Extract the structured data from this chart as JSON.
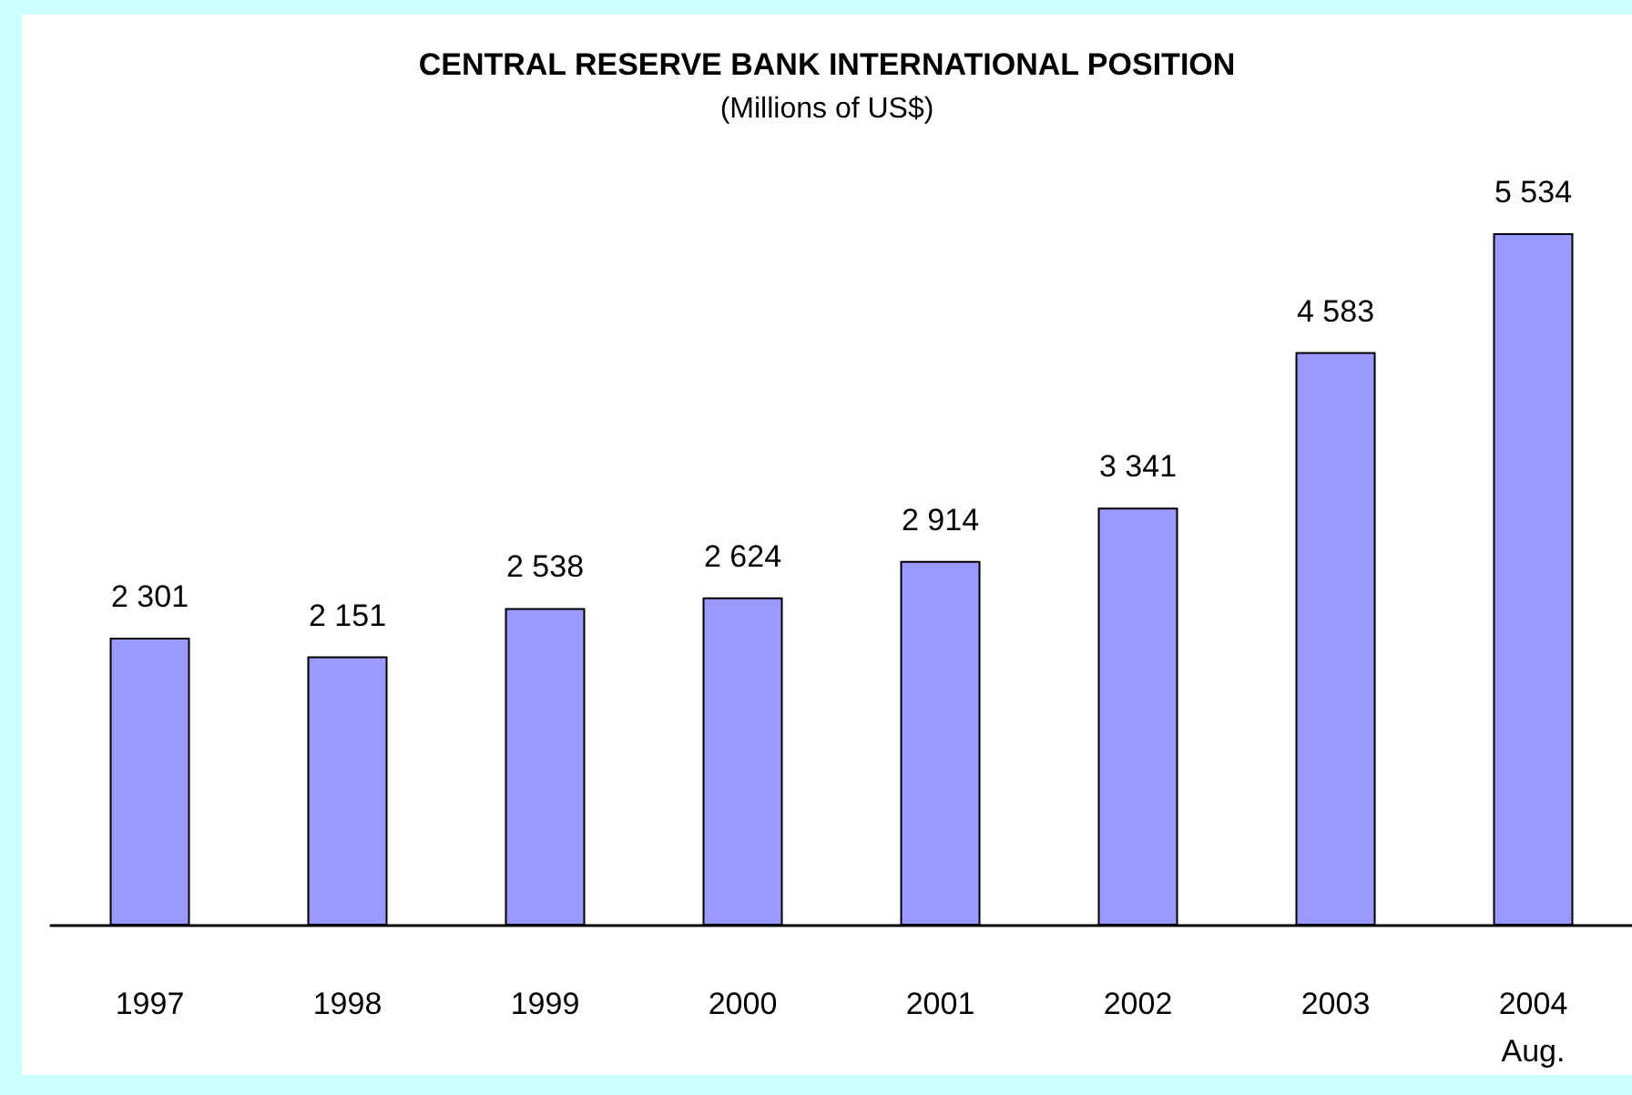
{
  "chart_data": {
    "type": "bar",
    "title": "CENTRAL RESERVE BANK INTERNATIONAL POSITION",
    "subtitle": "(Millions of US$)",
    "categories": [
      "1997",
      "1998",
      "1999",
      "2000",
      "2001",
      "2002",
      "2003",
      "2004\nAug."
    ],
    "values": [
      2301,
      2151,
      2538,
      2624,
      2914,
      3341,
      4583,
      5534
    ],
    "value_labels": [
      "2 301",
      "2 151",
      "2 538",
      "2 624",
      "2 914",
      "3 341",
      "4 583",
      "5 534"
    ],
    "color": "#9999ff"
  }
}
